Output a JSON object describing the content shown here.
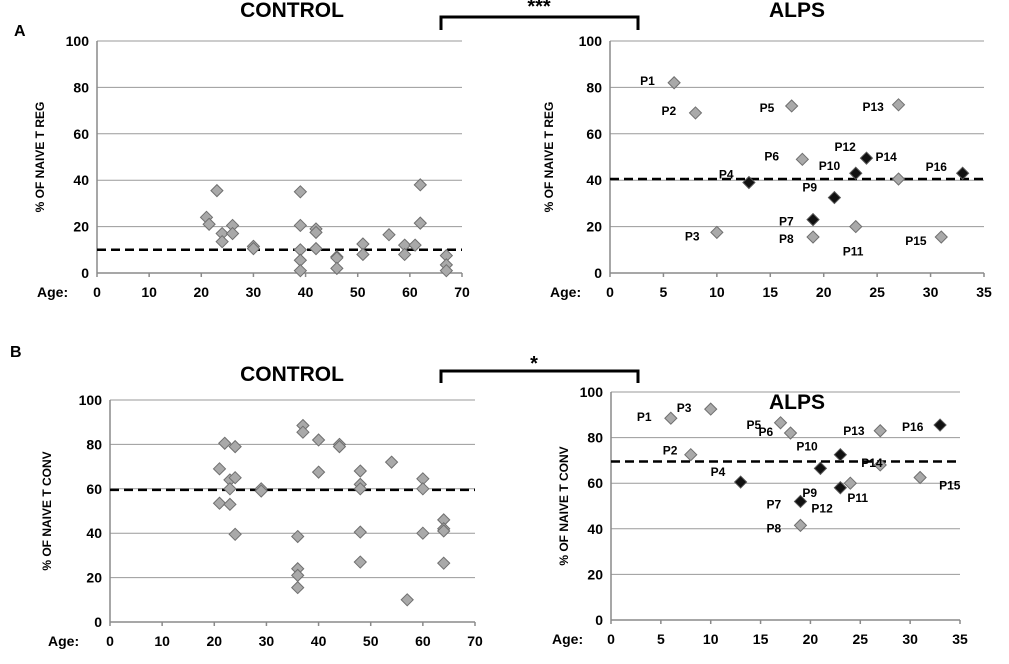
{
  "panel_a": {
    "letter": "A"
  },
  "panel_b": {
    "letter": "B"
  },
  "colors": {
    "grey_point": "#a9a9a9",
    "black_point": "#111111",
    "grid": "#9a9a9a",
    "threshold": "#000000"
  },
  "chart_data": [
    {
      "id": "A-control",
      "type": "scatter",
      "title": "CONTROL",
      "xlabel": "Age:",
      "ylabel": "% OF NAIVE T REG",
      "xlim": [
        0,
        70
      ],
      "ylim": [
        0,
        100
      ],
      "xticks": [
        "0",
        "10",
        "20",
        "30",
        "40",
        "50",
        "60",
        "70"
      ],
      "yticks": [
        "0",
        "20",
        "40",
        "60",
        "80",
        "100"
      ],
      "threshold": 10,
      "points": [
        {
          "x": 21,
          "y": 24
        },
        {
          "x": 21.5,
          "y": 21
        },
        {
          "x": 23,
          "y": 35.5
        },
        {
          "x": 24,
          "y": 17
        },
        {
          "x": 24,
          "y": 13.5
        },
        {
          "x": 26,
          "y": 20.5
        },
        {
          "x": 26,
          "y": 17
        },
        {
          "x": 30,
          "y": 11.5
        },
        {
          "x": 30,
          "y": 10.5
        },
        {
          "x": 39,
          "y": 35
        },
        {
          "x": 39,
          "y": 20.5
        },
        {
          "x": 39,
          "y": 10
        },
        {
          "x": 39,
          "y": 5.5
        },
        {
          "x": 39,
          "y": 1
        },
        {
          "x": 42,
          "y": 19
        },
        {
          "x": 42,
          "y": 17.5
        },
        {
          "x": 42,
          "y": 10.5
        },
        {
          "x": 46,
          "y": 7
        },
        {
          "x": 46,
          "y": 6.5
        },
        {
          "x": 46,
          "y": 2
        },
        {
          "x": 51,
          "y": 12.5
        },
        {
          "x": 51,
          "y": 8
        },
        {
          "x": 56,
          "y": 16.5
        },
        {
          "x": 59,
          "y": 12
        },
        {
          "x": 59,
          "y": 8
        },
        {
          "x": 61,
          "y": 12
        },
        {
          "x": 62,
          "y": 21.5
        },
        {
          "x": 62,
          "y": 38
        },
        {
          "x": 67,
          "y": 7.5
        },
        {
          "x": 67,
          "y": 3.5
        },
        {
          "x": 67,
          "y": 1
        }
      ]
    },
    {
      "id": "A-alps",
      "type": "scatter",
      "title": "ALPS",
      "xlabel": "Age:",
      "ylabel": "% OF NAIVE T REG",
      "xlim": [
        0,
        35
      ],
      "ylim": [
        0,
        100
      ],
      "xticks": [
        "0",
        "5",
        "10",
        "15",
        "20",
        "25",
        "30",
        "35"
      ],
      "yticks": [
        "0",
        "20",
        "40",
        "60",
        "80",
        "100"
      ],
      "threshold": 40.5,
      "points": [
        {
          "label": "P1",
          "x": 6,
          "y": 82,
          "color": "grey"
        },
        {
          "label": "P2",
          "x": 8,
          "y": 69,
          "color": "grey"
        },
        {
          "label": "P3",
          "x": 10,
          "y": 17.5,
          "color": "grey"
        },
        {
          "label": "P4",
          "x": 13,
          "y": 39,
          "color": "black"
        },
        {
          "label": "P5",
          "x": 17,
          "y": 72,
          "color": "grey"
        },
        {
          "label": "P6",
          "x": 18,
          "y": 49,
          "color": "grey"
        },
        {
          "label": "P7",
          "x": 19,
          "y": 23,
          "color": "black"
        },
        {
          "label": "P8",
          "x": 19,
          "y": 15.5,
          "color": "grey"
        },
        {
          "label": "P9",
          "x": 21,
          "y": 32.5,
          "color": "black"
        },
        {
          "label": "P10",
          "x": 23,
          "y": 43,
          "color": "black"
        },
        {
          "label": "P11",
          "x": 23,
          "y": 20,
          "color": "grey"
        },
        {
          "label": "P12",
          "x": 24,
          "y": 49.5,
          "color": "black"
        },
        {
          "label": "P13",
          "x": 27,
          "y": 72.5,
          "color": "grey"
        },
        {
          "label": "P14",
          "x": 27,
          "y": 40.5,
          "color": "grey"
        },
        {
          "label": "P15",
          "x": 31,
          "y": 15.5,
          "color": "grey"
        },
        {
          "label": "P16",
          "x": 33,
          "y": 43,
          "color": "black"
        }
      ]
    },
    {
      "id": "B-control",
      "type": "scatter",
      "title": "CONTROL",
      "xlabel": "Age:",
      "ylabel": "% OF NAIVE T CONV",
      "xlim": [
        0,
        70
      ],
      "ylim": [
        0,
        100
      ],
      "xticks": [
        "0",
        "10",
        "20",
        "30",
        "40",
        "50",
        "60",
        "70"
      ],
      "yticks": [
        "0",
        "20",
        "40",
        "60",
        "80",
        "100"
      ],
      "threshold": 59.5,
      "points": [
        {
          "x": 21,
          "y": 69
        },
        {
          "x": 21,
          "y": 53.5
        },
        {
          "x": 22,
          "y": 80.5
        },
        {
          "x": 23,
          "y": 64
        },
        {
          "x": 23,
          "y": 60
        },
        {
          "x": 23,
          "y": 53
        },
        {
          "x": 24,
          "y": 79
        },
        {
          "x": 24,
          "y": 65
        },
        {
          "x": 24,
          "y": 39.5
        },
        {
          "x": 29,
          "y": 60
        },
        {
          "x": 29,
          "y": 59
        },
        {
          "x": 36,
          "y": 38.5
        },
        {
          "x": 36,
          "y": 24
        },
        {
          "x": 36,
          "y": 21
        },
        {
          "x": 36,
          "y": 15.5
        },
        {
          "x": 37,
          "y": 88.5
        },
        {
          "x": 37,
          "y": 85.5
        },
        {
          "x": 40,
          "y": 82
        },
        {
          "x": 40,
          "y": 67.5
        },
        {
          "x": 44,
          "y": 80
        },
        {
          "x": 44,
          "y": 79
        },
        {
          "x": 48,
          "y": 68
        },
        {
          "x": 48,
          "y": 62
        },
        {
          "x": 48,
          "y": 60
        },
        {
          "x": 48,
          "y": 40.5
        },
        {
          "x": 48,
          "y": 27
        },
        {
          "x": 54,
          "y": 72
        },
        {
          "x": 57,
          "y": 10
        },
        {
          "x": 60,
          "y": 64.5
        },
        {
          "x": 60,
          "y": 60
        },
        {
          "x": 60,
          "y": 40
        },
        {
          "x": 64,
          "y": 46
        },
        {
          "x": 64,
          "y": 42
        },
        {
          "x": 64,
          "y": 41
        },
        {
          "x": 64,
          "y": 26.5
        }
      ]
    },
    {
      "id": "B-alps",
      "type": "scatter",
      "title": "ALPS",
      "xlabel": "Age:",
      "ylabel": "% OF NAIVE T CONV",
      "xlim": [
        0,
        35
      ],
      "ylim": [
        0,
        100
      ],
      "xticks": [
        "0",
        "5",
        "10",
        "15",
        "20",
        "25",
        "30",
        "35"
      ],
      "yticks": [
        "0",
        "20",
        "40",
        "60",
        "80",
        "100"
      ],
      "threshold": 69.5,
      "points": [
        {
          "label": "P1",
          "x": 6,
          "y": 88.5,
          "color": "grey"
        },
        {
          "label": "P2",
          "x": 8,
          "y": 72.5,
          "color": "grey"
        },
        {
          "label": "P3",
          "x": 10,
          "y": 92.5,
          "color": "grey"
        },
        {
          "label": "P4",
          "x": 13,
          "y": 60.5,
          "color": "black"
        },
        {
          "label": "P5",
          "x": 17,
          "y": 86.5,
          "color": "grey"
        },
        {
          "label": "P6",
          "x": 18,
          "y": 82,
          "color": "grey"
        },
        {
          "label": "P7",
          "x": 19,
          "y": 52,
          "color": "black"
        },
        {
          "label": "P8",
          "x": 19,
          "y": 41.5,
          "color": "grey"
        },
        {
          "label": "P9",
          "x": 23,
          "y": 58,
          "color": "black"
        },
        {
          "label": "P10",
          "x": 23,
          "y": 72.5,
          "color": "black"
        },
        {
          "label": "P11",
          "x": 24,
          "y": 60,
          "color": "grey"
        },
        {
          "label": "P12",
          "x": 21,
          "y": 66.5,
          "color": "black"
        },
        {
          "label": "P13",
          "x": 27,
          "y": 83,
          "color": "grey"
        },
        {
          "label": "P14",
          "x": 27,
          "y": 68,
          "color": "grey"
        },
        {
          "label": "P15",
          "x": 31,
          "y": 62.5,
          "color": "grey"
        },
        {
          "label": "P16",
          "x": 33,
          "y": 85.5,
          "color": "black"
        }
      ]
    }
  ],
  "significance": [
    {
      "panel": "A",
      "text": "***"
    },
    {
      "panel": "B",
      "text": "*"
    }
  ]
}
